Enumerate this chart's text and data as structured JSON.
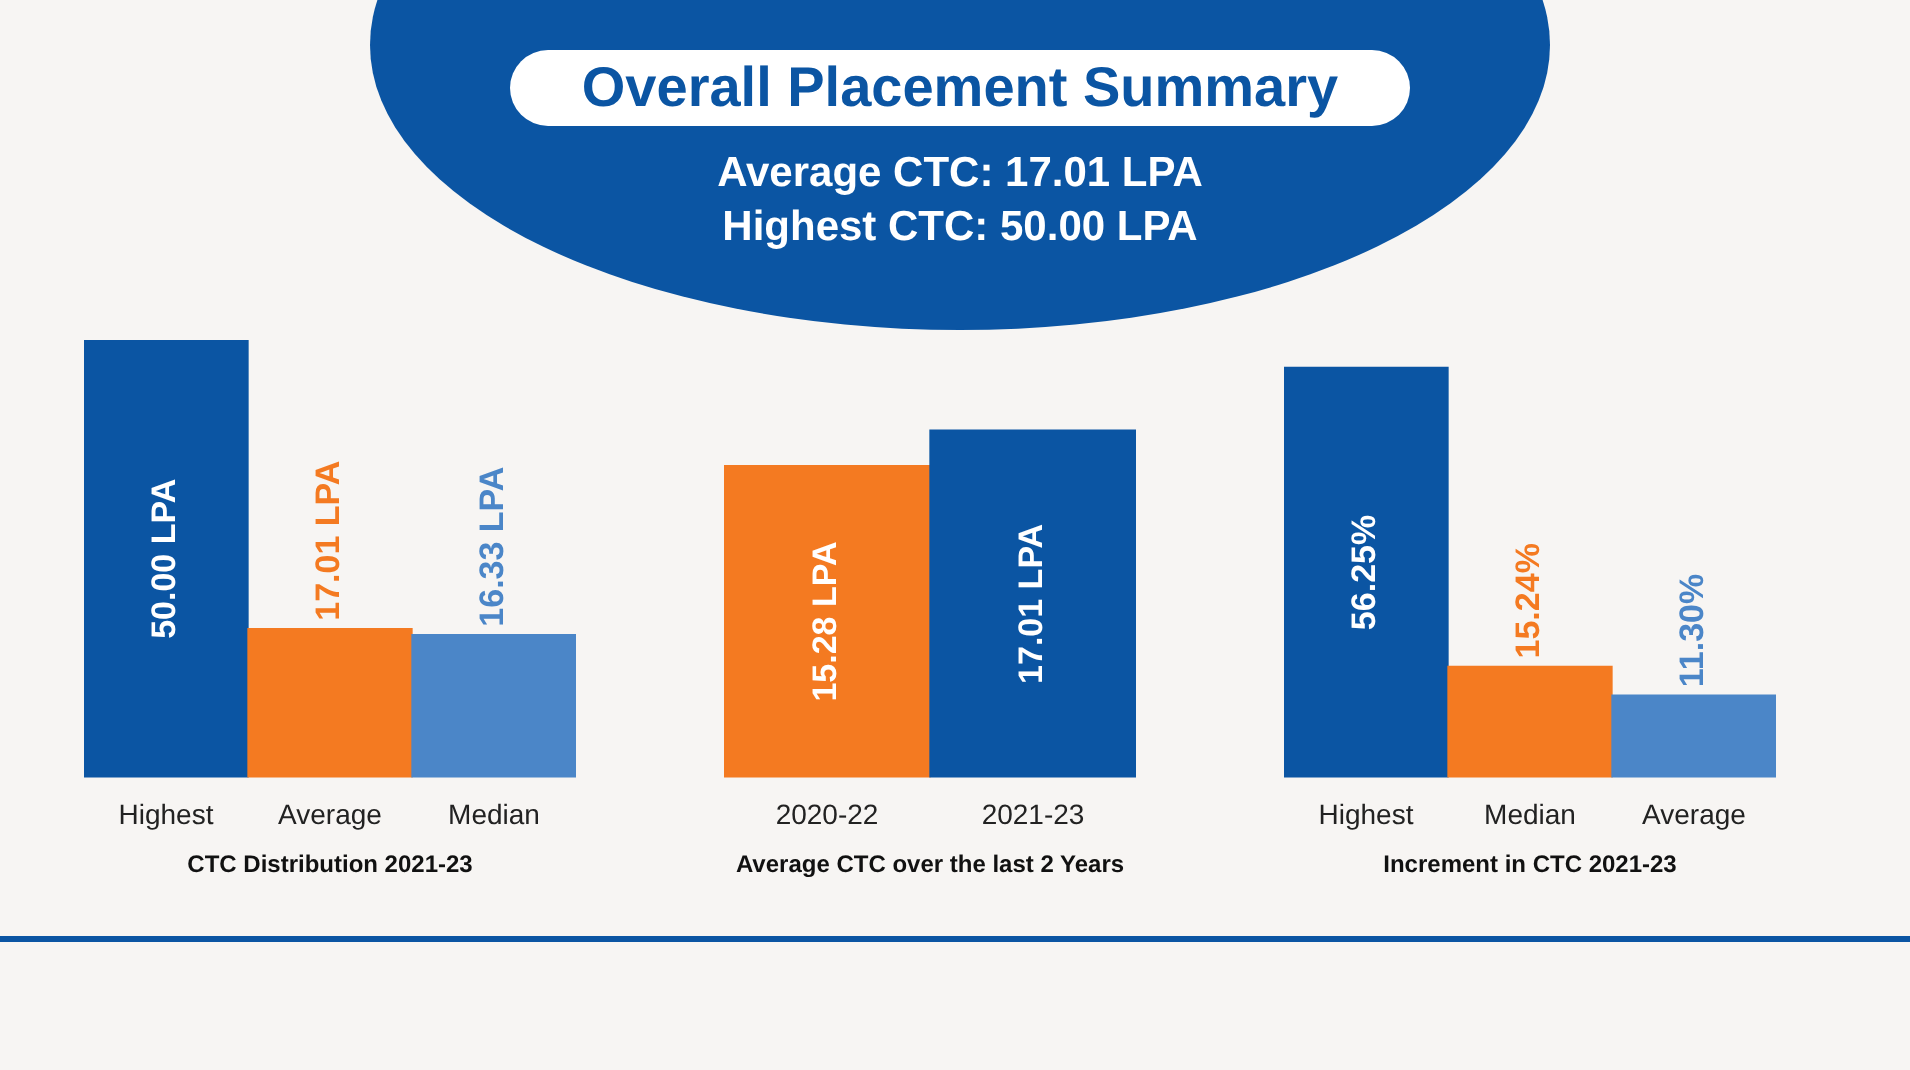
{
  "chart_data": [
    {
      "type": "other",
      "title": "Overall Placement Summary",
      "annotations": [
        "Average CTC: 17.01 LPA",
        "Highest CTC: 50.00 LPA"
      ]
    },
    {
      "type": "bar",
      "title": "CTC Distribution 2021-23",
      "categories": [
        "Highest",
        "Average",
        "Median"
      ],
      "values": [
        50.0,
        17.01,
        16.33
      ],
      "colors": [
        "#0b55a3",
        "#f47a21",
        "#4b86c8"
      ],
      "value_labels": [
        "50.00 LPA",
        "17.01 LPA",
        "16.33 LPA"
      ],
      "tick_labels": "x"
    },
    {
      "type": "bar",
      "title": "Average CTC over the last 2 Years",
      "categories": [
        "2020-22",
        "2021-23"
      ],
      "values": [
        15.28,
        17.01
      ],
      "colors": [
        "#f47a21",
        "#0b55a3"
      ],
      "value_labels": [
        "15.28 LPA",
        "17.01 LPA"
      ],
      "tick_labels": "x"
    },
    {
      "type": "bar",
      "title": "Increment in CTC 2021-23",
      "categories": [
        "Highest",
        "Median",
        "Average"
      ],
      "values": [
        56.25,
        15.24,
        11.3
      ],
      "colors": [
        "#0b55a3",
        "#f47a21",
        "#4b86c8"
      ],
      "value_labels": [
        "56.25%",
        "15.24%",
        "11.30%"
      ],
      "tick_labels": "x"
    }
  ]
}
